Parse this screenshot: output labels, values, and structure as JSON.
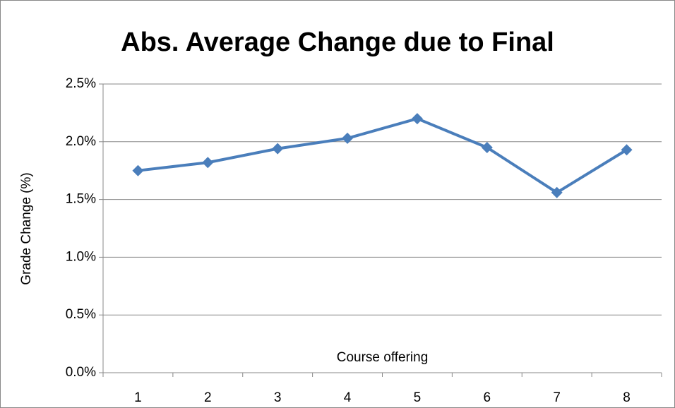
{
  "chart_data": {
    "type": "line",
    "title": "Abs. Average Change due to Final",
    "x_label": "Course offering",
    "y_label": "Grade Change (%)",
    "categories": [
      "1",
      "2",
      "3",
      "4",
      "5",
      "6",
      "7",
      "8"
    ],
    "series": [
      {
        "name": "Abs. Average Change due to Final",
        "color": "#4a7ebb",
        "values": [
          1.75,
          1.82,
          1.94,
          2.03,
          2.2,
          1.95,
          1.56,
          1.93
        ]
      }
    ],
    "ylim": [
      0,
      2.5
    ],
    "yticks": [
      {
        "value": 0,
        "label": "0.0%"
      },
      {
        "value": 0.5,
        "label": "0.5%"
      },
      {
        "value": 1,
        "label": "1.0%"
      },
      {
        "value": 1.5,
        "label": "1.5%"
      },
      {
        "value": 2,
        "label": "2.0%"
      },
      {
        "value": 2.5,
        "label": "2.5%"
      }
    ],
    "grid": true
  }
}
